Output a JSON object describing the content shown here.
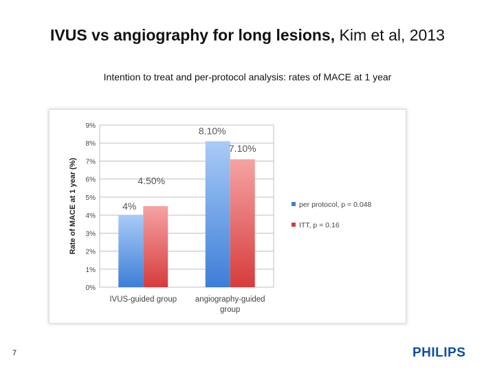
{
  "slide": {
    "title_bold": "IVUS vs angiography for long lesions,",
    "title_rest": " Kim et al, 2013",
    "subtitle": "Intention to treat and per-protocol analysis: rates of MACE at 1 year",
    "page_number": "7",
    "logo_text": "PHILIPS"
  },
  "chart_data": {
    "type": "bar",
    "title": "",
    "ylabel": "Rate of MACE at 1 year (%)",
    "xlabel": "",
    "categories": [
      [
        "IVUS-guided group"
      ],
      [
        "angiography-guided",
        "group"
      ]
    ],
    "yticks": [
      "0%",
      "1%",
      "2%",
      "3%",
      "4%",
      "5%",
      "6%",
      "7%",
      "8%",
      "9%"
    ],
    "ylim": [
      0,
      9
    ],
    "grid": true,
    "legend_position": "right",
    "series": [
      {
        "name": "per protocol, p = 0.048",
        "values": [
          4,
          8.1
        ],
        "labels": [
          "4%",
          "8.10%"
        ],
        "color_top": "#a9cbf7",
        "color_bottom": "#3d7ed8"
      },
      {
        "name": "ITT, p = 0.16",
        "values": [
          4.5,
          7.1
        ],
        "labels": [
          "4.50%",
          "7.10%"
        ],
        "color_top": "#f6a3a3",
        "color_bottom": "#d63c3c"
      }
    ]
  }
}
